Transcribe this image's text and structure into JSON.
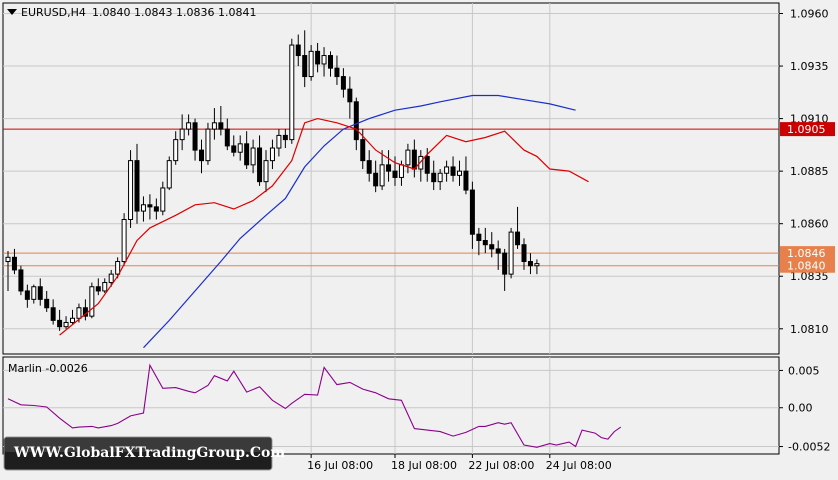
{
  "chart_header": {
    "symbol": "EURUSD,H4",
    "open": "1.0840",
    "high": "1.0843",
    "low": "1.0836",
    "close": "1.0841"
  },
  "watermark": "WWW.GlobalFXTradingGroup.Com",
  "colors": {
    "background": "#f0f0f0",
    "plot_bg": "#f0f0f0",
    "grid": "#c8c8c8",
    "candle": "#000000",
    "ma_fast": "#dd0000",
    "ma_slow": "#1a2ecc",
    "marlin": "#8b008b",
    "level_red": "#cc0000",
    "level_orange": "#e8804c",
    "badge_text": "#ffffff"
  },
  "chart_data": [
    {
      "type": "candlestick",
      "title": "EURUSD,H4",
      "ylim": [
        1.0798,
        1.0965
      ],
      "y_ticks": [
        "1.0960",
        "1.0935",
        "1.0910",
        "1.0885",
        "1.0860",
        "1.0835",
        "1.0810"
      ],
      "x_tick_labels": [
        "16 Jul 08:00",
        "18 Jul 08:00",
        "22 Jul 08:00",
        "24 Jul 08:00"
      ],
      "x_tick_bars": [
        47,
        60,
        72,
        84
      ],
      "grid": true,
      "ohlc": [
        [
          1.0842,
          1.0847,
          1.0828,
          1.0844
        ],
        [
          1.0844,
          1.0848,
          1.0836,
          1.0838
        ],
        [
          1.0838,
          1.084,
          1.0826,
          1.0828
        ],
        [
          1.0828,
          1.0831,
          1.082,
          1.0824
        ],
        [
          1.0824,
          1.0831,
          1.0822,
          1.083
        ],
        [
          1.083,
          1.0834,
          1.0821,
          1.0824
        ],
        [
          1.0824,
          1.0828,
          1.0818,
          1.082
        ],
        [
          1.082,
          1.0824,
          1.0812,
          1.0814
        ],
        [
          1.0814,
          1.0819,
          1.0809,
          1.0811
        ],
        [
          1.0811,
          1.0816,
          1.081,
          1.0813
        ],
        [
          1.0813,
          1.0819,
          1.0812,
          1.0815
        ],
        [
          1.0815,
          1.0822,
          1.0813,
          1.082
        ],
        [
          1.082,
          1.0824,
          1.0814,
          1.0816
        ],
        [
          1.0816,
          1.0832,
          1.0815,
          1.083
        ],
        [
          1.083,
          1.0834,
          1.0826,
          1.0828
        ],
        [
          1.0828,
          1.0834,
          1.0827,
          1.0832
        ],
        [
          1.0832,
          1.0838,
          1.083,
          1.0836
        ],
        [
          1.0836,
          1.0844,
          1.0834,
          1.0842
        ],
        [
          1.0842,
          1.0865,
          1.084,
          1.0862
        ],
        [
          1.0862,
          1.0895,
          1.0858,
          1.089
        ],
        [
          1.089,
          1.0898,
          1.086,
          1.0866
        ],
        [
          1.0866,
          1.0873,
          1.0861,
          1.0869
        ],
        [
          1.0869,
          1.0874,
          1.0862,
          1.0868
        ],
        [
          1.0868,
          1.0872,
          1.0862,
          1.0866
        ],
        [
          1.0866,
          1.088,
          1.0864,
          1.0877
        ],
        [
          1.0877,
          1.0892,
          1.0876,
          1.089
        ],
        [
          1.089,
          1.0904,
          1.0888,
          1.09
        ],
        [
          1.09,
          1.0912,
          1.0895,
          1.0905
        ],
        [
          1.0905,
          1.0912,
          1.0902,
          1.0908
        ],
        [
          1.0908,
          1.091,
          1.089,
          1.0895
        ],
        [
          1.0895,
          1.09,
          1.0884,
          1.089
        ],
        [
          1.089,
          1.0908,
          1.0888,
          1.0905
        ],
        [
          1.0905,
          1.0915,
          1.09,
          1.0908
        ],
        [
          1.0908,
          1.0916,
          1.0902,
          1.0905
        ],
        [
          1.0905,
          1.091,
          1.0895,
          1.0897
        ],
        [
          1.0897,
          1.0902,
          1.0892,
          1.0894
        ],
        [
          1.0894,
          1.0902,
          1.089,
          1.0898
        ],
        [
          1.0898,
          1.0904,
          1.0886,
          1.0888
        ],
        [
          1.0888,
          1.09,
          1.0884,
          1.0896
        ],
        [
          1.0896,
          1.0902,
          1.0878,
          1.088
        ],
        [
          1.088,
          1.0895,
          1.0875,
          1.089
        ],
        [
          1.089,
          1.09,
          1.0886,
          1.0896
        ],
        [
          1.0896,
          1.0905,
          1.0892,
          1.0902
        ],
        [
          1.0902,
          1.0905,
          1.0896,
          1.09
        ],
        [
          1.09,
          1.0948,
          1.0898,
          1.0945
        ],
        [
          1.0945,
          1.095,
          1.0935,
          1.094
        ],
        [
          1.094,
          1.0952,
          1.0925,
          1.093
        ],
        [
          1.093,
          1.0945,
          1.0928,
          1.0942
        ],
        [
          1.0942,
          1.0946,
          1.0932,
          1.0936
        ],
        [
          1.0936,
          1.0944,
          1.093,
          1.094
        ],
        [
          1.094,
          1.0942,
          1.093,
          1.0934
        ],
        [
          1.0934,
          1.094,
          1.0926,
          1.093
        ],
        [
          1.093,
          1.0934,
          1.092,
          1.0924
        ],
        [
          1.0924,
          1.093,
          1.091,
          1.0918
        ],
        [
          1.0918,
          1.092,
          1.0895,
          1.09
        ],
        [
          1.09,
          1.0905,
          1.0886,
          1.089
        ],
        [
          1.089,
          1.0895,
          1.088,
          1.0884
        ],
        [
          1.0884,
          1.089,
          1.0875,
          1.0878
        ],
        [
          1.0878,
          1.0895,
          1.0876,
          1.0888
        ],
        [
          1.0888,
          1.0895,
          1.088,
          1.0885
        ],
        [
          1.0885,
          1.0892,
          1.0878,
          1.0882
        ],
        [
          1.0882,
          1.089,
          1.0878,
          1.0888
        ],
        [
          1.0888,
          1.0898,
          1.0884,
          1.0895
        ],
        [
          1.0895,
          1.09,
          1.0882,
          1.0886
        ],
        [
          1.0886,
          1.0895,
          1.088,
          1.0892
        ],
        [
          1.0892,
          1.0896,
          1.088,
          1.0884
        ],
        [
          1.0884,
          1.089,
          1.0876,
          1.088
        ],
        [
          1.088,
          1.0886,
          1.0876,
          1.0884
        ],
        [
          1.0884,
          1.089,
          1.088,
          1.0887
        ],
        [
          1.0887,
          1.0892,
          1.088,
          1.0883
        ],
        [
          1.0883,
          1.089,
          1.0878,
          1.0885
        ],
        [
          1.0885,
          1.0892,
          1.0874,
          1.0876
        ],
        [
          1.0876,
          1.088,
          1.0848,
          1.0855
        ],
        [
          1.0855,
          1.0858,
          1.0845,
          1.0852
        ],
        [
          1.0852,
          1.0858,
          1.0846,
          1.085
        ],
        [
          1.085,
          1.0856,
          1.0844,
          1.0848
        ],
        [
          1.0848,
          1.0852,
          1.0838,
          1.0846
        ],
        [
          1.0846,
          1.0848,
          1.0828,
          1.0836
        ],
        [
          1.0836,
          1.0858,
          1.0834,
          1.0856
        ],
        [
          1.0856,
          1.0868,
          1.0848,
          1.085
        ],
        [
          1.085,
          1.0853,
          1.0838,
          1.0842
        ],
        [
          1.0842,
          1.0846,
          1.0836,
          1.084
        ],
        [
          1.084,
          1.0843,
          1.0836,
          1.0841
        ]
      ],
      "ma_fast": [
        [
          8,
          1.0807
        ],
        [
          14,
          1.0822
        ],
        [
          17,
          1.0835
        ],
        [
          20,
          1.0852
        ],
        [
          22,
          1.0858
        ],
        [
          26,
          1.0864
        ],
        [
          29,
          1.0869
        ],
        [
          32,
          1.087
        ],
        [
          35,
          1.0867
        ],
        [
          38,
          1.0871
        ],
        [
          41,
          1.0878
        ],
        [
          44,
          1.089
        ],
        [
          46,
          1.0908
        ],
        [
          48,
          1.091
        ],
        [
          51,
          1.0908
        ],
        [
          54,
          1.0905
        ],
        [
          57,
          1.0895
        ],
        [
          60,
          1.0889
        ],
        [
          63,
          1.0886
        ],
        [
          65,
          1.0893
        ],
        [
          68,
          1.0902
        ],
        [
          71,
          1.0899
        ],
        [
          74,
          1.0901
        ],
        [
          77,
          1.0904
        ],
        [
          80,
          1.0895
        ],
        [
          82,
          1.0892
        ],
        [
          84,
          1.0886
        ],
        [
          87,
          1.0885
        ],
        [
          90,
          1.088
        ]
      ],
      "ma_slow": [
        [
          21,
          1.0801
        ],
        [
          25,
          1.0814
        ],
        [
          29,
          1.0828
        ],
        [
          33,
          1.0842
        ],
        [
          36,
          1.0853
        ],
        [
          40,
          1.0864
        ],
        [
          43,
          1.0872
        ],
        [
          46,
          1.0887
        ],
        [
          49,
          1.0897
        ],
        [
          52,
          1.0905
        ],
        [
          56,
          1.091
        ],
        [
          60,
          1.0914
        ],
        [
          64,
          1.0916
        ],
        [
          67,
          1.0918
        ],
        [
          72,
          1.0921
        ],
        [
          76,
          1.0921
        ],
        [
          80,
          1.0919
        ],
        [
          84,
          1.0917
        ],
        [
          88,
          1.0914
        ]
      ],
      "levels": [
        {
          "value": 1.0905,
          "label": "1.0905",
          "kind": "red"
        },
        {
          "value": 1.0846,
          "label": "1.0846",
          "kind": "orange"
        },
        {
          "value": 1.084,
          "label": "1.0840",
          "kind": "orange"
        }
      ]
    },
    {
      "type": "line",
      "title": "Marlin -0.0026",
      "ylim": [
        -0.0062,
        0.0068
      ],
      "y_ticks": [
        "0.005",
        "0.00",
        "-0.0052"
      ],
      "series": [
        {
          "name": "Marlin",
          "points": [
            [
              0,
              0.0012
            ],
            [
              1,
              0.0008
            ],
            [
              2,
              0.0004
            ],
            [
              4,
              0.0003
            ],
            [
              6,
              0.0001
            ],
            [
              8,
              -0.0014
            ],
            [
              10,
              -0.0027
            ],
            [
              11,
              -0.0026
            ],
            [
              13,
              -0.0025
            ],
            [
              14,
              -0.0027
            ],
            [
              16,
              -0.0024
            ],
            [
              17,
              -0.0021
            ],
            [
              19,
              -0.0011
            ],
            [
              21,
              -0.0007
            ],
            [
              22,
              0.0057
            ],
            [
              24,
              0.0026
            ],
            [
              26,
              0.0027
            ],
            [
              28,
              0.0022
            ],
            [
              29,
              0.002
            ],
            [
              31,
              0.003
            ],
            [
              32,
              0.0043
            ],
            [
              34,
              0.0036
            ],
            [
              35,
              0.0049
            ],
            [
              37,
              0.0021
            ],
            [
              39,
              0.0028
            ],
            [
              41,
              0.001
            ],
            [
              43,
              -0.0001
            ],
            [
              44,
              0.0006
            ],
            [
              46,
              0.0018
            ],
            [
              48,
              0.0017
            ],
            [
              49,
              0.0054
            ],
            [
              51,
              0.0031
            ],
            [
              53,
              0.0034
            ],
            [
              55,
              0.0025
            ],
            [
              57,
              0.002
            ],
            [
              59,
              0.0012
            ],
            [
              61,
              0.001
            ],
            [
              63,
              -0.0028
            ],
            [
              65,
              -0.003
            ],
            [
              67,
              -0.0032
            ],
            [
              69,
              -0.0038
            ],
            [
              71,
              -0.0033
            ],
            [
              73,
              -0.0025
            ],
            [
              74,
              -0.0025
            ],
            [
              76,
              -0.002
            ],
            [
              77,
              -0.0022
            ],
            [
              78,
              -0.002
            ],
            [
              80,
              -0.005
            ],
            [
              82,
              -0.0053
            ],
            [
              84,
              -0.0048
            ],
            [
              85,
              -0.005
            ],
            [
              87,
              -0.0046
            ],
            [
              88,
              -0.0052
            ],
            [
              89,
              -0.003
            ],
            [
              91,
              -0.0034
            ],
            [
              92,
              -0.004
            ],
            [
              93,
              -0.0042
            ],
            [
              94,
              -0.0032
            ],
            [
              95,
              -0.0026
            ]
          ]
        }
      ]
    }
  ]
}
